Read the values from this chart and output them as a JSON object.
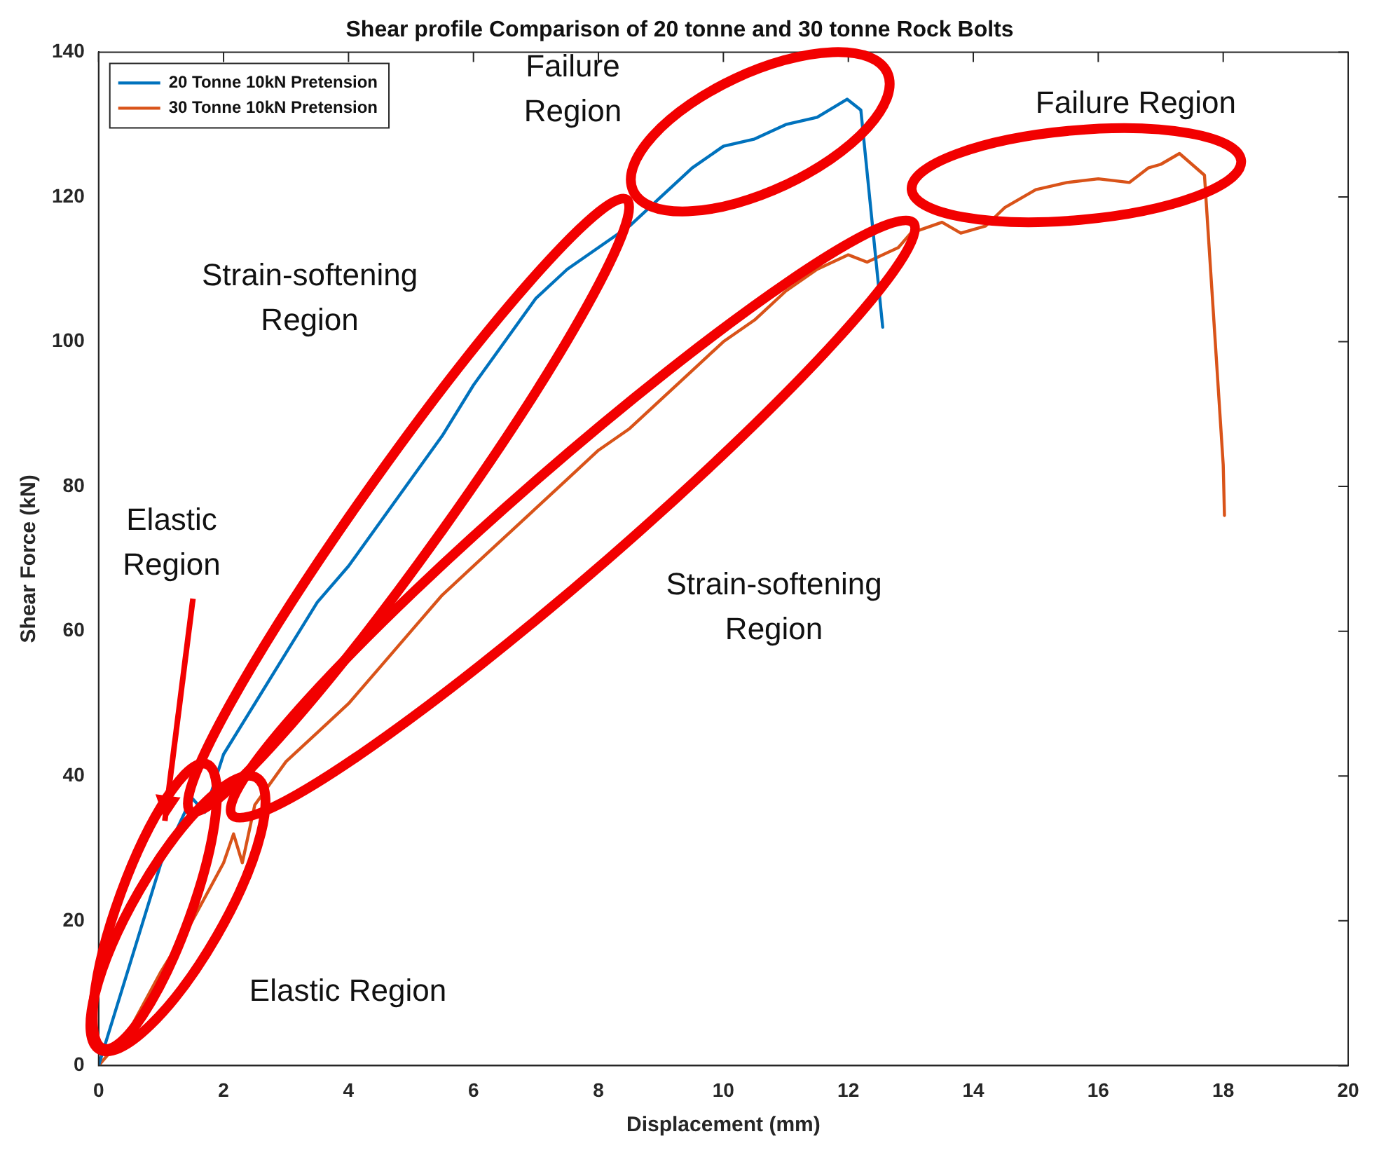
{
  "chart_data": {
    "type": "line",
    "title": "Shear profile Comparison of 20 tonne and 30 tonne Rock Bolts",
    "xlabel": "Displacement (mm)",
    "ylabel": "Shear Force (kN)",
    "xlim": [
      0,
      20
    ],
    "xticks": [
      0,
      2,
      4,
      6,
      8,
      10,
      12,
      14,
      16,
      18,
      20
    ],
    "ylim": [
      0,
      140
    ],
    "yticks": [
      0,
      20,
      40,
      60,
      80,
      100,
      120,
      140
    ],
    "grid": false,
    "legend": "top left",
    "marker": "none",
    "line_style": "solid",
    "series": [
      {
        "name": "20 Tonne 10kN Pretension",
        "color": "#0072bd",
        "x": [
          0,
          0.5,
          1,
          1.49,
          1.7,
          2,
          2.5,
          3,
          3.5,
          4,
          4.5,
          5,
          5.5,
          6,
          6.5,
          7,
          7.5,
          8,
          8.5,
          9,
          9.5,
          10,
          10.5,
          11,
          11.5,
          11.98,
          12.2,
          12.55
        ],
        "values": [
          0,
          14,
          28,
          37,
          35,
          43,
          50,
          57,
          64,
          69,
          75,
          81,
          87,
          94,
          100,
          106,
          110,
          113,
          116,
          120,
          124,
          127,
          128,
          130,
          131,
          133.5,
          132,
          102
        ]
      },
      {
        "name": "30 Tonne 10kN Pretension",
        "color": "#d95319",
        "x": [
          0,
          0.5,
          1,
          1.5,
          2,
          2.16,
          2.3,
          2.5,
          3,
          3.5,
          4,
          4.5,
          5,
          5.5,
          6,
          6.5,
          7,
          7.5,
          8,
          8.5,
          9,
          9.5,
          10,
          10.5,
          11,
          11.5,
          12,
          12.3,
          12.8,
          13,
          13.5,
          13.8,
          14.2,
          14.5,
          15,
          15.5,
          16,
          16.5,
          16.8,
          17,
          17.3,
          17.7,
          18,
          18.02
        ],
        "values": [
          0,
          5,
          13,
          20,
          28,
          32,
          28,
          36,
          42,
          46,
          50,
          55,
          60,
          65,
          69,
          73,
          77,
          81,
          85,
          88,
          92,
          96,
          100,
          103,
          107,
          110,
          112,
          111,
          113,
          115,
          116.5,
          115,
          116,
          118.5,
          121,
          122,
          122.5,
          122,
          124,
          124.5,
          126,
          123,
          83,
          76
        ]
      }
    ],
    "annotations": [
      "Failure\nRegion",
      "Failure Region",
      "Strain-softening\nRegion",
      "Strain-softening\nRegion",
      "Elastic\nRegion",
      "Elastic Region"
    ]
  }
}
